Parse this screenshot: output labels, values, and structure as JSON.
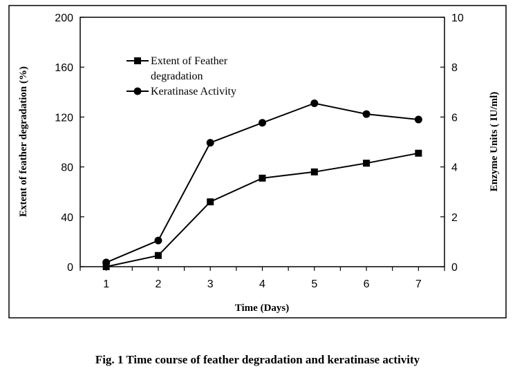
{
  "chart_data": {
    "type": "line",
    "caption": "Fig. 1 Time course of feather degradation and keratinase activity",
    "xlabel": "Time (Days)",
    "ylabel_left": "Extent of feather degradation (%)",
    "ylabel_right": "Enzyme Units ( IU/ml)",
    "x": [
      1,
      2,
      3,
      4,
      5,
      6,
      7
    ],
    "xlim": [
      0.5,
      7.5
    ],
    "ylim_left": [
      0,
      200
    ],
    "ylim_right": [
      0,
      10
    ],
    "yticks_left": [
      0,
      40,
      80,
      120,
      160,
      200
    ],
    "yticks_right": [
      0,
      2,
      4,
      6,
      8,
      10
    ],
    "grid": false,
    "legend_position": "top-left",
    "series": [
      {
        "name": "Extent of Feather degradation",
        "legend_lines": [
          "Extent of Feather",
          "degradation"
        ],
        "axis": "left",
        "marker": "square",
        "values": [
          0,
          9,
          52,
          71,
          76,
          83,
          91
        ]
      },
      {
        "name": "Keratinase Activity",
        "legend_lines": [
          "Keratinase Activity"
        ],
        "axis": "right",
        "marker": "circle",
        "values": [
          0.17,
          1.05,
          4.97,
          5.77,
          6.55,
          6.12,
          5.9
        ]
      }
    ],
    "colors": {
      "line": "#000000",
      "frame": "#000000"
    }
  }
}
